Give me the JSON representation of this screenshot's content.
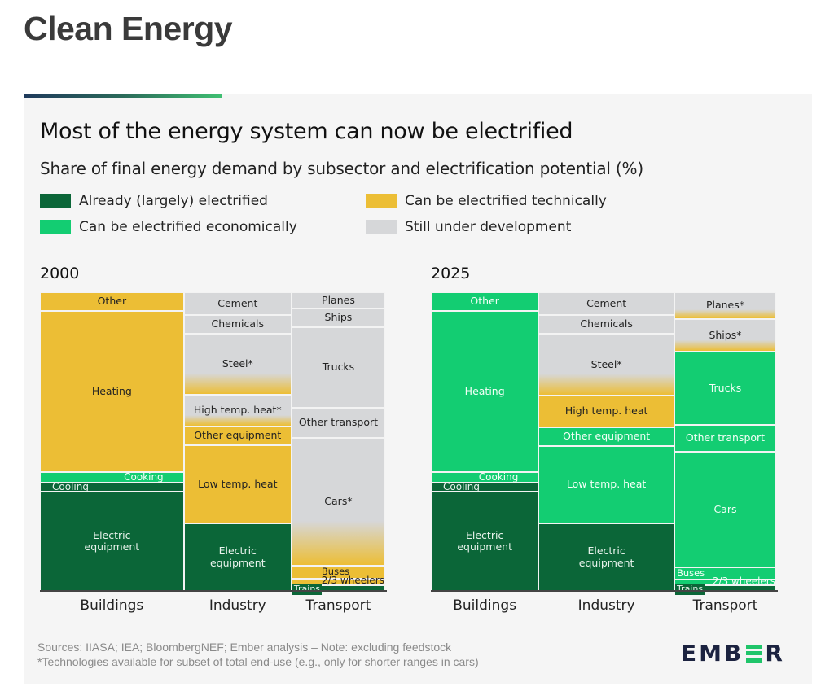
{
  "page": {
    "title": "Clean Energy"
  },
  "chart_data": [
    {
      "type": "treemap",
      "title": "Most of the energy system can now be electrified",
      "subtitle": "Share of final energy demand by subsector and electrification potential (%)",
      "year": "2000",
      "legend_placement": "top",
      "sectors": [
        {
          "name": "Buildings",
          "share": 41.3,
          "subsectors": [
            {
              "name": "Other",
              "label": "Other",
              "share": 6.3,
              "category": "technical"
            },
            {
              "name": "Heating",
              "label": "Heating",
              "share": 54.0,
              "category": "technical"
            },
            {
              "name": "Cooking",
              "label": "Cooking",
              "share": 3.5,
              "category": "economic"
            },
            {
              "name": "Cooling",
              "label": "Cooling",
              "share": 3.0,
              "category": "electrified"
            },
            {
              "name": "Electric equipment",
              "label": "Electric equipment",
              "share": 33.2,
              "category": "electrified"
            }
          ]
        },
        {
          "name": "Industry",
          "share": 30.9,
          "subsectors": [
            {
              "name": "Cement",
              "label": "Cement",
              "share": 7.6,
              "category": "development"
            },
            {
              "name": "Chemicals",
              "label": "Chemicals",
              "share": 6.3,
              "category": "development"
            },
            {
              "name": "Steel",
              "label": "Steel*",
              "share": 20.4,
              "category": "development",
              "fade_to": "technical"
            },
            {
              "name": "High temp. heat",
              "label": "High temp. heat*",
              "share": 10.6,
              "category": "development",
              "fade_to": "technical"
            },
            {
              "name": "Other equipment",
              "label": "Other equipment",
              "share": 6.3,
              "category": "technical"
            },
            {
              "name": "Low temp. heat",
              "label": "Low temp. heat",
              "share": 26.2,
              "category": "technical"
            },
            {
              "name": "Electric equipment",
              "label": "Electric equipment",
              "share": 22.6,
              "category": "electrified"
            }
          ]
        },
        {
          "name": "Transport",
          "share": 26.9,
          "subsectors": [
            {
              "name": "Planes",
              "label": "Planes",
              "share": 5.4,
              "category": "development"
            },
            {
              "name": "Ships",
              "label": "Ships",
              "share": 6.3,
              "category": "development"
            },
            {
              "name": "Trucks",
              "label": "Trucks",
              "share": 27.0,
              "category": "development"
            },
            {
              "name": "Other transport",
              "label": "Other transport",
              "share": 10.1,
              "category": "development"
            },
            {
              "name": "Cars",
              "label": "Cars*",
              "share": 42.8,
              "category": "development",
              "fade_to": "technical"
            },
            {
              "name": "Buses",
              "label": "Buses",
              "share": 4.4,
              "category": "technical"
            },
            {
              "name": "2/3 wheelers",
              "label": "2/3 wheelers",
              "share": 2.2,
              "category": "technical"
            },
            {
              "name": "Trains",
              "label": "Trains",
              "share": 1.9,
              "category": "electrified"
            }
          ]
        }
      ]
    },
    {
      "type": "treemap",
      "year": "2025",
      "sectors": [
        {
          "name": "Buildings",
          "share": 30.9,
          "subsectors": [
            {
              "name": "Other",
              "label": "Other",
              "share": 6.3,
              "category": "economic"
            },
            {
              "name": "Heating",
              "label": "Heating",
              "share": 54.0,
              "category": "economic"
            },
            {
              "name": "Cooking",
              "label": "Cooking",
              "share": 3.5,
              "category": "economic"
            },
            {
              "name": "Cooling",
              "label": "Cooling",
              "share": 3.0,
              "category": "electrified"
            },
            {
              "name": "Electric equipment",
              "label": "Electric equipment",
              "share": 33.2,
              "category": "electrified"
            }
          ]
        },
        {
          "name": "Industry",
          "share": 38.9,
          "subsectors": [
            {
              "name": "Cement",
              "label": "Cement",
              "share": 7.6,
              "category": "development"
            },
            {
              "name": "Chemicals",
              "label": "Chemicals",
              "share": 6.3,
              "category": "development"
            },
            {
              "name": "Steel",
              "label": "Steel*",
              "share": 20.7,
              "category": "development",
              "fade_to": "technical"
            },
            {
              "name": "High temp. heat",
              "label": "High temp. heat",
              "share": 10.6,
              "category": "technical"
            },
            {
              "name": "Other equipment",
              "label": "Other equipment",
              "share": 6.3,
              "category": "economic"
            },
            {
              "name": "Low temp. heat",
              "label": "Low temp. heat",
              "share": 25.9,
              "category": "economic"
            },
            {
              "name": "Electric equipment",
              "label": "Electric equipment",
              "share": 22.6,
              "category": "electrified"
            }
          ]
        },
        {
          "name": "Transport",
          "share": 29.2,
          "subsectors": [
            {
              "name": "Planes",
              "label": "Planes*",
              "share": 9.0,
              "category": "development",
              "fade_to": "technical"
            },
            {
              "name": "Ships",
              "label": "Ships*",
              "share": 10.9,
              "category": "development",
              "fade_to": "technical"
            },
            {
              "name": "Trucks",
              "label": "Trucks",
              "share": 24.5,
              "category": "economic"
            },
            {
              "name": "Other transport",
              "label": "Other transport",
              "share": 9.0,
              "category": "economic"
            },
            {
              "name": "Cars",
              "label": "Cars",
              "share": 38.7,
              "category": "economic"
            },
            {
              "name": "Buses",
              "label": "Buses",
              "share": 4.1,
              "category": "economic"
            },
            {
              "name": "2/3 wheelers",
              "label": "2/3 wheelers",
              "share": 1.9,
              "category": "economic"
            },
            {
              "name": "Trains",
              "label": "Trains",
              "share": 1.9,
              "category": "electrified"
            }
          ]
        }
      ]
    }
  ],
  "legend": [
    {
      "key": "electrified",
      "label": "Already (largely) electrified",
      "color": "#0b6638"
    },
    {
      "key": "technical",
      "label": "Can be electrified technically",
      "color": "#ecbe35"
    },
    {
      "key": "economic",
      "label": "Can be electrified economically",
      "color": "#13cd72"
    },
    {
      "key": "development",
      "label": "Still under development",
      "color": "#d6d7d9"
    }
  ],
  "footnotes": {
    "sources": "Sources: IIASA; IEA; BloombergNEF; Ember analysis – Note: excluding feedstock",
    "asterisk": "*Technologies available for subset of total end-use (e.g., only for shorter ranges in cars)"
  },
  "logo": {
    "pre": "EMB",
    "post": "R"
  },
  "colors": {
    "electrified": "#0b6638",
    "technical": "#ecbe35",
    "economic": "#13cd72",
    "development": "#d6d7d9"
  }
}
